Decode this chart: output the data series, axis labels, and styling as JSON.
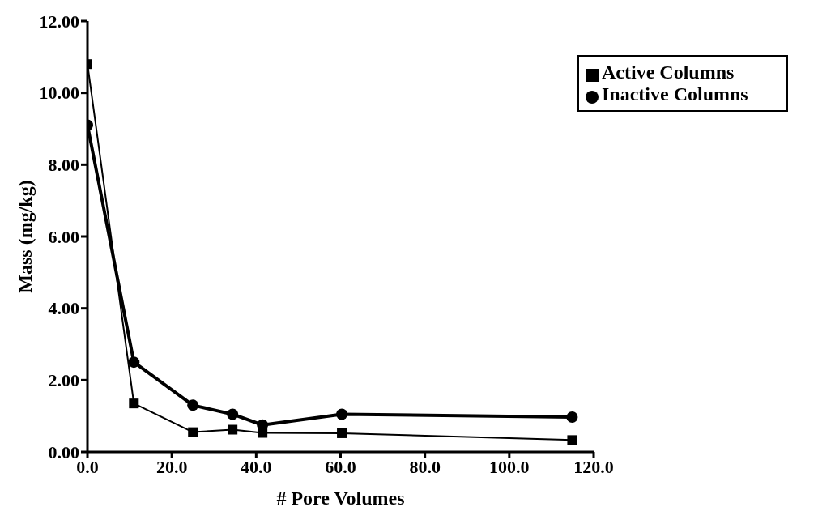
{
  "chart_data": {
    "type": "line",
    "xlabel": "# Pore Volumes",
    "ylabel": "Mass (mg/kg)",
    "x": [
      0,
      11,
      25,
      34.4,
      41.5,
      60.3,
      114.9
    ],
    "series": [
      {
        "name": "Inactive Columns",
        "color": "#000000",
        "marker": "circle",
        "values": [
          9.1,
          2.5,
          1.3,
          1.05,
          0.75,
          1.05,
          0.97
        ]
      },
      {
        "name": "Active Columns",
        "color": "#000000",
        "marker": "square",
        "values": [
          10.8,
          1.35,
          0.55,
          0.62,
          0.53,
          0.52,
          0.33
        ]
      }
    ],
    "xlim": [
      0,
      120
    ],
    "xticks": [
      {
        "value": 0,
        "label": "0.0"
      },
      {
        "value": 20,
        "label": "20.0"
      },
      {
        "value": 40,
        "label": "40.0"
      },
      {
        "value": 60,
        "label": "60.0"
      },
      {
        "value": 80,
        "label": "80.0"
      },
      {
        "value": 100,
        "label": "100.0"
      },
      {
        "value": 120,
        "label": "120.0"
      }
    ],
    "ylim": [
      0,
      12
    ],
    "yticks": [
      {
        "value": 0,
        "label": "0.00"
      },
      {
        "value": 2,
        "label": "2.00"
      },
      {
        "value": 4,
        "label": "4.00"
      },
      {
        "value": 6,
        "label": "6.00"
      },
      {
        "value": 8,
        "label": "8.00"
      },
      {
        "value": 10,
        "label": "10.00"
      },
      {
        "value": 12,
        "label": "12.00"
      }
    ],
    "grid": false,
    "legend": "top right"
  }
}
